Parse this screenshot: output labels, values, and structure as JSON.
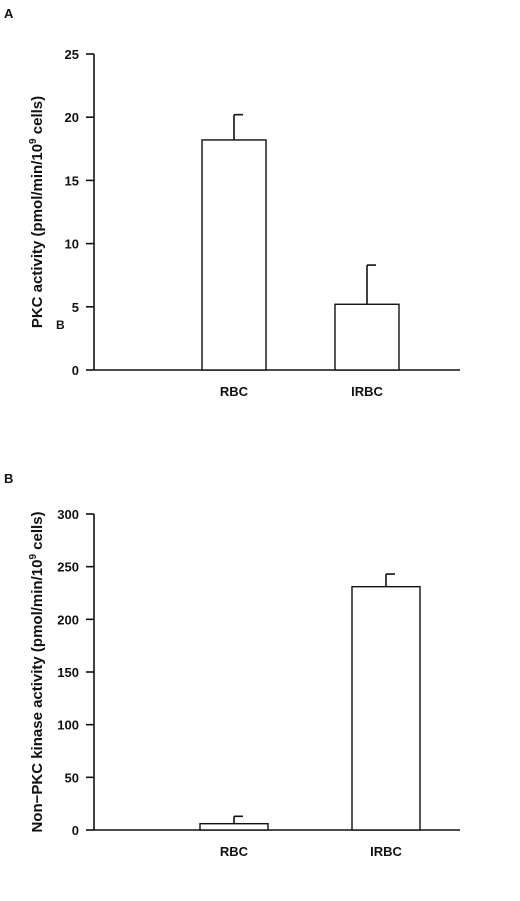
{
  "chart_data": [
    {
      "panel": "A",
      "type": "bar",
      "categories": [
        "RBC",
        "IRBC"
      ],
      "values": [
        18.2,
        5.2
      ],
      "errors": [
        2.0,
        3.1
      ],
      "ylabel_main": "PKC activity (pmol/min/10",
      "ylabel_exp": "9",
      "ylabel_tail": " cells)",
      "ylim": [
        0,
        25
      ],
      "yticks": [
        0,
        5,
        10,
        15,
        20,
        25
      ],
      "extra_label": "B"
    },
    {
      "panel": "B",
      "type": "bar",
      "categories": [
        "RBC",
        "IRBC"
      ],
      "values": [
        6,
        231
      ],
      "errors": [
        7,
        12
      ],
      "ylabel_main": "Non−PKC kinase activity (pmol/min/10",
      "ylabel_exp": "9",
      "ylabel_tail": " cells)",
      "ylim": [
        0,
        300
      ],
      "yticks": [
        0,
        50,
        100,
        150,
        200,
        250,
        300
      ]
    }
  ]
}
